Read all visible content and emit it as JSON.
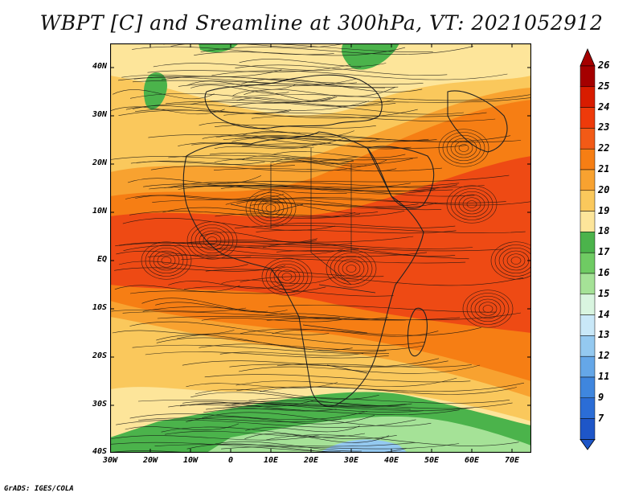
{
  "title": "WBPT [C] and Sreamline at 300hPa, VT: 2021052912",
  "credit": "GrADS: IGES/COLA",
  "lat_labels": [
    "40N",
    "30N",
    "20N",
    "10N",
    "EQ",
    "10S",
    "20S",
    "30S",
    "40S"
  ],
  "lon_labels": [
    "30W",
    "20W",
    "10W",
    "0",
    "10E",
    "20E",
    "30E",
    "40E",
    "50E",
    "60E",
    "70E"
  ],
  "colorbar": {
    "levels": [
      "26",
      "25",
      "24",
      "23",
      "22",
      "21",
      "20",
      "19",
      "18",
      "17",
      "16",
      "15",
      "14",
      "13",
      "12",
      "11",
      "9",
      "7"
    ],
    "colors": [
      "#a50000",
      "#d81c00",
      "#ee3a0a",
      "#f25a16",
      "#f67e14",
      "#f8a230",
      "#fac85c",
      "#fde59a",
      "#4bb34b",
      "#6fcb63",
      "#a5e297",
      "#d9f5e0",
      "#c9e8f8",
      "#94c9f0",
      "#65a7e8",
      "#3f86de",
      "#2b6dd6",
      "#1e56c8"
    ]
  },
  "field_colors": {
    "band_hot": "#ee4a14",
    "band_warm": "#f67e14",
    "band_mild": "#f8a230",
    "band_cool": "#fac85c",
    "band_pale": "#fde59a",
    "green": "#4bb34b",
    "green_light": "#a5e297",
    "blue": "#94c9f0"
  }
}
